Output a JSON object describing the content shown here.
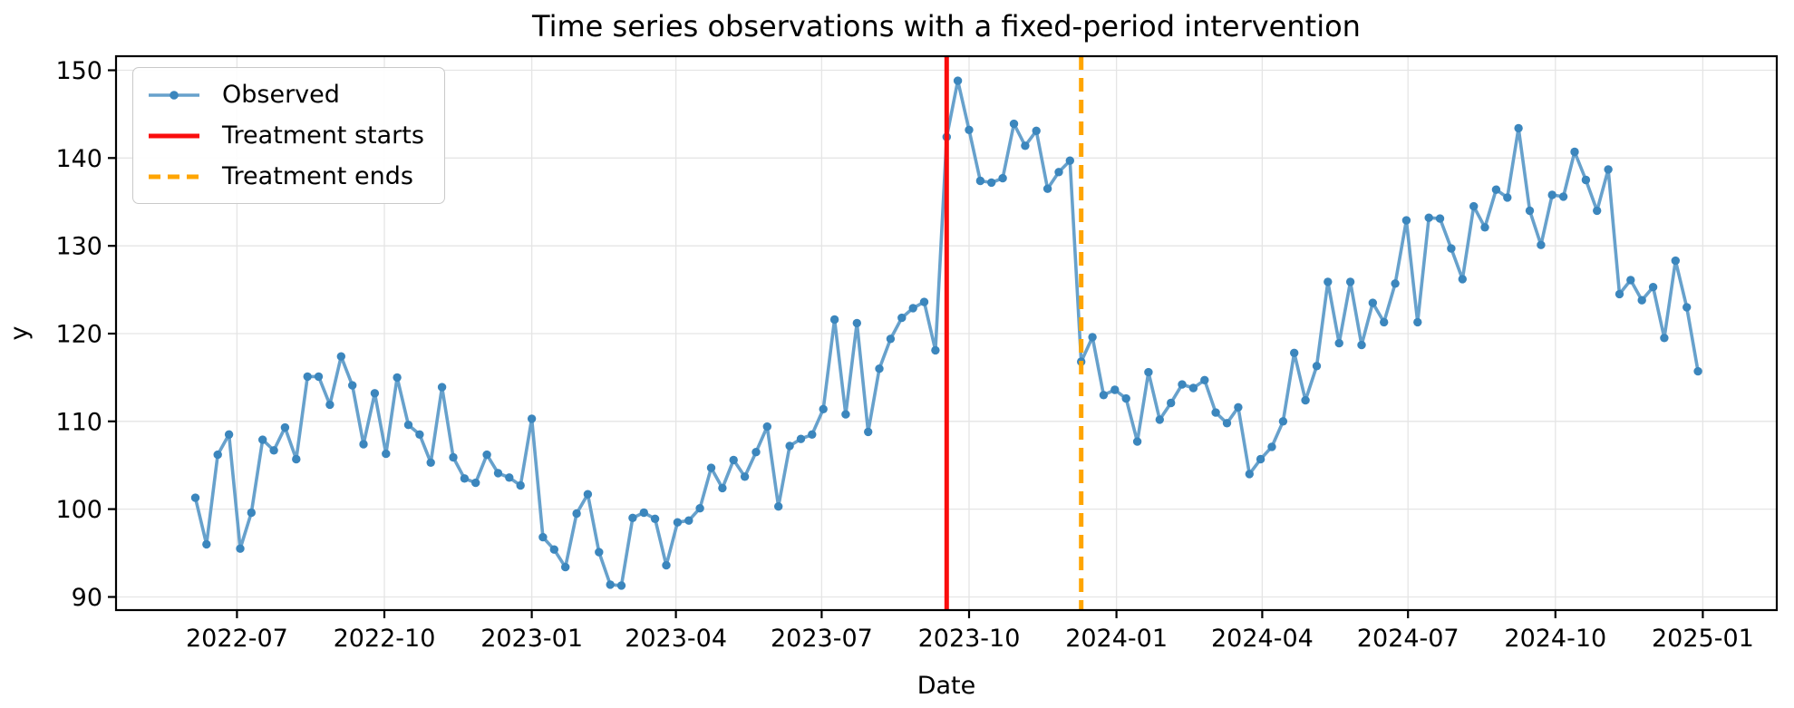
{
  "title": "Time series observations with a fixed-period intervention",
  "colors": {
    "observed_line": "#67a1cc",
    "observed_marker": "#3b86bd",
    "treatment_start": "#fa0d0d",
    "treatment_end": "#ffa500",
    "grid": "#e5e5e5",
    "spine": "#000000",
    "text": "#000000"
  },
  "legend": {
    "entries": [
      {
        "label": "Observed",
        "marker": "line-with-dot"
      },
      {
        "label": "Treatment starts",
        "marker": "solid-line"
      },
      {
        "label": "Treatment ends",
        "marker": "dashed-line"
      }
    ]
  },
  "chart_data": {
    "type": "line",
    "title": "Time series observations with a fixed-period intervention",
    "xlabel": "Date",
    "ylabel": "y",
    "grid": true,
    "legend_position": "upper left",
    "ylim": [
      88.5,
      151.6
    ],
    "y_ticks": [
      90,
      100,
      110,
      120,
      130,
      140,
      150
    ],
    "x_range_days": [
      -49.5,
      987.2
    ],
    "x_start": "2022-06-05",
    "interval_days": 7,
    "x_ticks": [
      {
        "date": "2022-07-01",
        "label": "2022-07"
      },
      {
        "date": "2022-10-01",
        "label": "2022-10"
      },
      {
        "date": "2023-01-01",
        "label": "2023-01"
      },
      {
        "date": "2023-04-01",
        "label": "2023-04"
      },
      {
        "date": "2023-07-01",
        "label": "2023-07"
      },
      {
        "date": "2023-10-01",
        "label": "2023-10"
      },
      {
        "date": "2024-01-01",
        "label": "2024-01"
      },
      {
        "date": "2024-04-01",
        "label": "2024-04"
      },
      {
        "date": "2024-07-01",
        "label": "2024-07"
      },
      {
        "date": "2024-10-01",
        "label": "2024-10"
      },
      {
        "date": "2025-01-01",
        "label": "2025-01"
      }
    ],
    "series": [
      {
        "name": "Observed",
        "values": [
          101.3,
          96.0,
          106.2,
          108.5,
          95.5,
          99.6,
          107.9,
          106.7,
          109.3,
          105.7,
          115.1,
          115.1,
          111.9,
          117.4,
          114.1,
          107.4,
          113.2,
          106.3,
          115.0,
          109.6,
          108.5,
          105.3,
          113.9,
          105.9,
          103.5,
          103.0,
          106.2,
          104.1,
          103.6,
          102.7,
          110.3,
          96.8,
          95.4,
          93.4,
          99.5,
          101.7,
          95.1,
          91.4,
          91.3,
          99.0,
          99.6,
          98.9,
          93.6,
          98.5,
          98.7,
          100.1,
          104.7,
          102.4,
          105.6,
          103.7,
          106.5,
          109.4,
          100.3,
          107.2,
          108.0,
          108.5,
          111.4,
          121.6,
          110.8,
          121.2,
          108.8,
          116.0,
          119.4,
          121.8,
          122.9,
          123.6,
          118.1,
          142.4,
          148.8,
          143.2,
          137.4,
          137.2,
          137.7,
          143.9,
          141.4,
          143.1,
          136.5,
          138.4,
          139.7,
          116.8,
          119.6,
          113.0,
          113.6,
          112.6,
          107.7,
          115.6,
          110.2,
          112.1,
          114.2,
          113.8,
          114.7,
          111.0,
          109.8,
          111.6,
          104.0,
          105.7,
          107.1,
          110.0,
          117.8,
          112.4,
          116.3,
          125.9,
          118.9,
          125.9,
          118.7,
          123.5,
          121.3,
          125.7,
          132.9,
          121.3,
          133.2,
          133.1,
          129.7,
          126.2,
          134.5,
          132.1,
          136.4,
          135.5,
          143.4,
          134.0,
          130.1,
          135.8,
          135.6,
          140.7,
          137.5,
          134.0,
          138.7,
          124.5,
          126.1,
          123.8,
          125.3,
          119.5,
          128.3,
          123.0,
          115.7
        ]
      }
    ],
    "annotations": [
      {
        "type": "vline",
        "label": "Treatment starts",
        "date": "2023-09-17",
        "style": "solid",
        "color_key": "treatment_start"
      },
      {
        "type": "vline",
        "label": "Treatment ends",
        "date": "2023-12-10",
        "style": "dashed",
        "color_key": "treatment_end"
      }
    ]
  }
}
